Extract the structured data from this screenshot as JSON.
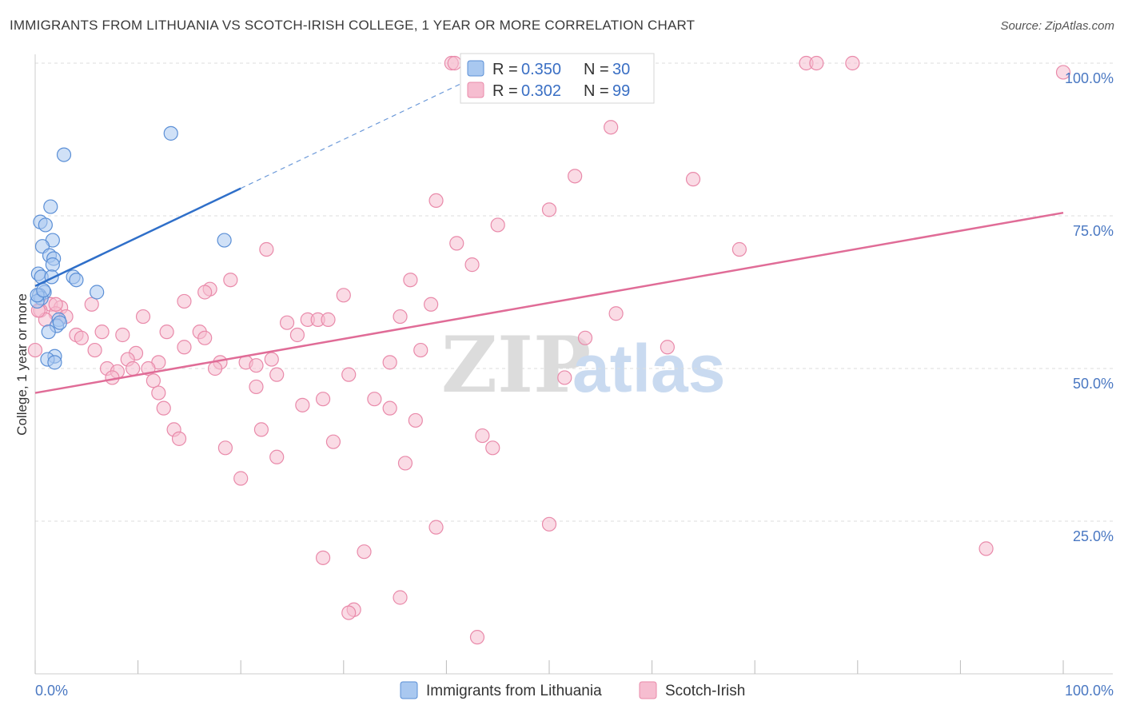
{
  "header": {
    "title": "IMMIGRANTS FROM LITHUANIA VS SCOTCH-IRISH COLLEGE, 1 YEAR OR MORE CORRELATION CHART",
    "source": "Source: ZipAtlas.com"
  },
  "watermark": {
    "zip": "ZIP",
    "atlas": "atlas"
  },
  "colors": {
    "blue_fill": "#a9c8f0",
    "blue_stroke": "#5b8fd6",
    "blue_line": "#2f6fc9",
    "pink_fill": "#f6bdd0",
    "pink_stroke": "#e98aaa",
    "pink_line": "#e06c97",
    "grid": "#dddddd",
    "tick_text": "#4a78c2"
  },
  "legend_top": {
    "rows": [
      {
        "r_label": "R = ",
        "r_value": "0.350",
        "n_label": "N = ",
        "n_value": "30"
      },
      {
        "r_label": "R = ",
        "r_value": "0.302",
        "n_label": "N = ",
        "n_value": "99"
      }
    ]
  },
  "legend_bottom": {
    "items": [
      {
        "label": "Immigrants from Lithuania"
      },
      {
        "label": "Scotch-Irish"
      }
    ]
  },
  "chart_data": {
    "type": "scatter",
    "title": "IMMIGRANTS FROM LITHUANIA VS SCOTCH-IRISH COLLEGE, 1 YEAR OR MORE CORRELATION CHART",
    "xlabel": "",
    "ylabel": "College, 1 year or more",
    "xlim": [
      0,
      100
    ],
    "ylim": [
      0,
      100
    ],
    "x_tick_labels": [
      "0.0%",
      "100.0%"
    ],
    "y_ticks": [
      25,
      50,
      75,
      100
    ],
    "y_tick_labels": [
      "25.0%",
      "50.0%",
      "75.0%",
      "100.0%"
    ],
    "grid": true,
    "legend_position": "top-center",
    "series": [
      {
        "name": "Immigrants from Lithuania",
        "r": 0.35,
        "n": 30,
        "trend": {
          "x0": 0,
          "y0": 63.5,
          "x1": 20,
          "y1": 79.5,
          "dashed_to_x": 45
        },
        "points": [
          [
            13.2,
            88.5
          ],
          [
            2.8,
            85.0
          ],
          [
            1.5,
            76.5
          ],
          [
            0.5,
            74.0
          ],
          [
            1.0,
            73.5
          ],
          [
            1.7,
            71.0
          ],
          [
            0.7,
            70.0
          ],
          [
            1.4,
            68.5
          ],
          [
            1.8,
            68.0
          ],
          [
            1.7,
            67.0
          ],
          [
            0.3,
            65.5
          ],
          [
            0.6,
            65.0
          ],
          [
            1.6,
            65.0
          ],
          [
            3.7,
            65.0
          ],
          [
            6.0,
            62.5
          ],
          [
            0.9,
            62.5
          ],
          [
            0.4,
            62.0
          ],
          [
            0.6,
            61.5
          ],
          [
            0.2,
            61.0
          ],
          [
            2.3,
            58.0
          ],
          [
            2.1,
            57.0
          ],
          [
            1.3,
            56.0
          ],
          [
            1.9,
            52.0
          ],
          [
            1.2,
            51.5
          ],
          [
            1.9,
            51.0
          ],
          [
            18.4,
            71.0
          ],
          [
            0.2,
            62.0
          ],
          [
            2.4,
            57.5
          ],
          [
            4.0,
            64.5
          ],
          [
            0.8,
            62.8
          ]
        ]
      },
      {
        "name": "Scotch-Irish",
        "r": 0.302,
        "n": 99,
        "trend": {
          "x0": 0,
          "y0": 46.0,
          "x1": 100,
          "y1": 75.5
        },
        "points": [
          [
            40.5,
            100
          ],
          [
            40.8,
            100
          ],
          [
            46.5,
            100
          ],
          [
            75.0,
            100
          ],
          [
            76.0,
            100
          ],
          [
            79.5,
            100
          ],
          [
            100,
            98.5
          ],
          [
            56.0,
            89.5
          ],
          [
            52.5,
            81.5
          ],
          [
            64.0,
            81.0
          ],
          [
            39.0,
            77.5
          ],
          [
            50.0,
            76.0
          ],
          [
            45.0,
            73.5
          ],
          [
            41.0,
            70.5
          ],
          [
            22.5,
            69.5
          ],
          [
            68.5,
            69.5
          ],
          [
            42.5,
            67.0
          ],
          [
            19.0,
            64.5
          ],
          [
            36.5,
            64.5
          ],
          [
            17.0,
            63.0
          ],
          [
            16.5,
            62.5
          ],
          [
            30.0,
            62.0
          ],
          [
            14.5,
            61.0
          ],
          [
            1.5,
            60.5
          ],
          [
            5.5,
            60.5
          ],
          [
            38.5,
            60.5
          ],
          [
            2.5,
            60.0
          ],
          [
            0.5,
            59.5
          ],
          [
            2.0,
            59.0
          ],
          [
            10.5,
            58.5
          ],
          [
            35.5,
            58.5
          ],
          [
            56.5,
            59.0
          ],
          [
            3.0,
            58.5
          ],
          [
            1.0,
            58.0
          ],
          [
            26.5,
            58.0
          ],
          [
            27.5,
            58.0
          ],
          [
            28.5,
            58.0
          ],
          [
            24.5,
            57.5
          ],
          [
            12.8,
            56.0
          ],
          [
            6.5,
            56.0
          ],
          [
            16.0,
            56.0
          ],
          [
            8.5,
            55.5
          ],
          [
            4.0,
            55.5
          ],
          [
            4.5,
            55.0
          ],
          [
            25.5,
            55.5
          ],
          [
            16.5,
            55.0
          ],
          [
            53.5,
            55.0
          ],
          [
            14.5,
            53.5
          ],
          [
            5.8,
            53.0
          ],
          [
            37.5,
            53.0
          ],
          [
            9.8,
            52.5
          ],
          [
            61.5,
            53.5
          ],
          [
            23.0,
            51.5
          ],
          [
            20.5,
            51.0
          ],
          [
            18.0,
            51.0
          ],
          [
            12.0,
            51.0
          ],
          [
            9.0,
            51.5
          ],
          [
            34.5,
            51.0
          ],
          [
            21.5,
            50.5
          ],
          [
            9.5,
            50.0
          ],
          [
            7.0,
            50.0
          ],
          [
            8.0,
            49.5
          ],
          [
            11.0,
            50.0
          ],
          [
            17.5,
            50.0
          ],
          [
            23.5,
            49.0
          ],
          [
            30.5,
            49.0
          ],
          [
            51.5,
            48.5
          ],
          [
            7.5,
            48.5
          ],
          [
            11.5,
            48.0
          ],
          [
            21.5,
            47.0
          ],
          [
            12.0,
            46.0
          ],
          [
            2.0,
            60.5
          ],
          [
            28.0,
            45.0
          ],
          [
            33.0,
            45.0
          ],
          [
            26.0,
            44.0
          ],
          [
            12.5,
            43.5
          ],
          [
            34.5,
            43.5
          ],
          [
            37.0,
            41.5
          ],
          [
            22.0,
            40.0
          ],
          [
            13.5,
            40.0
          ],
          [
            14.0,
            38.5
          ],
          [
            29.0,
            38.0
          ],
          [
            43.5,
            39.0
          ],
          [
            44.5,
            37.0
          ],
          [
            18.5,
            37.0
          ],
          [
            23.5,
            35.5
          ],
          [
            36.0,
            34.5
          ],
          [
            20.0,
            32.0
          ],
          [
            39.0,
            24.0
          ],
          [
            50.0,
            24.5
          ],
          [
            32.0,
            20.0
          ],
          [
            28.0,
            19.0
          ],
          [
            92.5,
            20.5
          ],
          [
            35.5,
            12.5
          ],
          [
            31.0,
            10.5
          ],
          [
            30.5,
            10.0
          ],
          [
            43.0,
            6.0
          ],
          [
            0.0,
            53.0
          ],
          [
            0.3,
            59.5
          ]
        ]
      }
    ]
  }
}
